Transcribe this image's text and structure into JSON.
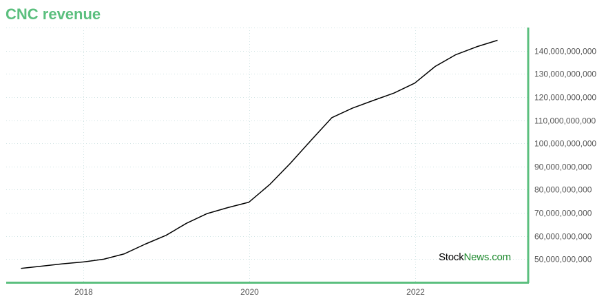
{
  "title": "CNC revenue",
  "watermark": {
    "part1": "Stock",
    "part2": "News.com"
  },
  "colors": {
    "accent": "#5bbf7e",
    "line": "#000000",
    "grid": "#cfe3e3",
    "axis_text": "#555555"
  },
  "chart_data": {
    "type": "line",
    "title": "CNC revenue",
    "xlabel": "",
    "ylabel": "",
    "x_ticks": [
      "2018",
      "2020",
      "2022"
    ],
    "y_ticks": [
      "50,000,000,000",
      "60,000,000,000",
      "70,000,000,000",
      "80,000,000,000",
      "90,000,000,000",
      "100,000,000,000",
      "110,000,000,000",
      "120,000,000,000",
      "130,000,000,000",
      "140,000,000,000"
    ],
    "ylim": [
      40000000000,
      150000000000
    ],
    "xlim": [
      "2017-01-25",
      "2023-05-15"
    ],
    "grid": true,
    "legend": "none",
    "series": [
      {
        "x": [
          "2017-03-31",
          "2017-06-30",
          "2017-09-30",
          "2017-12-31",
          "2018-03-31",
          "2018-06-30",
          "2018-09-30",
          "2018-12-31",
          "2019-03-31",
          "2019-06-30",
          "2019-09-30",
          "2019-12-31",
          "2020-03-31",
          "2020-06-30",
          "2020-09-30",
          "2020-12-31",
          "2021-03-31",
          "2021-06-30",
          "2021-09-30",
          "2021-12-31",
          "2022-03-31",
          "2022-06-30",
          "2022-09-30",
          "2022-12-31"
        ],
        "values": [
          46000000000,
          47000000000,
          48000000000,
          48800000000,
          50000000000,
          52300000000,
          56500000000,
          60300000000,
          65500000000,
          69700000000,
          72300000000,
          74600000000,
          82200000000,
          91300000000,
          101300000000,
          111100000000,
          115200000000,
          118500000000,
          121700000000,
          126000000000,
          133200000000,
          138300000000,
          141700000000,
          144500000000
        ]
      }
    ]
  }
}
